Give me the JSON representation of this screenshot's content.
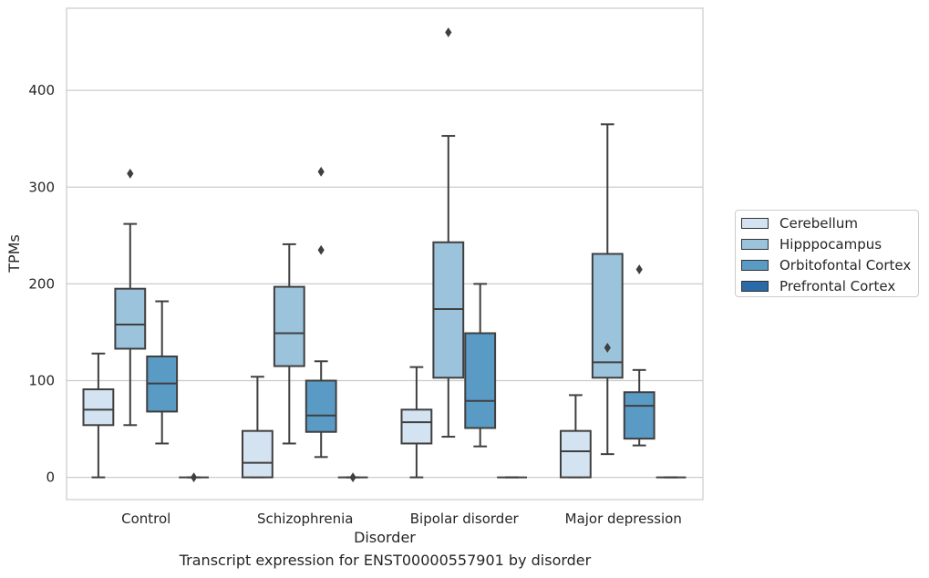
{
  "caption": "Transcript expression for ENST00000557901 by disorder",
  "chart_data": {
    "type": "box",
    "xlabel": "Disorder",
    "ylabel": "TPMs",
    "categories": [
      "Control",
      "Schizophrenia",
      "Bipolar disorder",
      "Major depression"
    ],
    "ylim": [
      -23,
      485
    ],
    "yticks": [
      0,
      100,
      200,
      300,
      400
    ],
    "grid": "horizontal",
    "legend_position": "right",
    "series": [
      {
        "name": "Cerebellum",
        "color": "#d4e3f1",
        "boxes": [
          {
            "whislo": 0,
            "q1": 54,
            "med": 70,
            "q3": 91,
            "whishi": 128,
            "fliers": []
          },
          {
            "whislo": 0,
            "q1": 0,
            "med": 15,
            "q3": 48,
            "whishi": 104,
            "fliers": []
          },
          {
            "whislo": 0,
            "q1": 35,
            "med": 57,
            "q3": 70,
            "whishi": 114,
            "fliers": []
          },
          {
            "whislo": 0,
            "q1": 0,
            "med": 27,
            "q3": 48,
            "whishi": 85,
            "fliers": []
          }
        ]
      },
      {
        "name": "Hipppocampus",
        "color": "#9cc3dc",
        "boxes": [
          {
            "whislo": 54,
            "q1": 133,
            "med": 158,
            "q3": 195,
            "whishi": 262,
            "fliers": [
              314
            ]
          },
          {
            "whislo": 35,
            "q1": 115,
            "med": 149,
            "q3": 197,
            "whishi": 241,
            "fliers": []
          },
          {
            "whislo": 42,
            "q1": 103,
            "med": 174,
            "q3": 243,
            "whishi": 353,
            "fliers": [
              460
            ]
          },
          {
            "whislo": 24,
            "q1": 103,
            "med": 119,
            "q3": 231,
            "whishi": 365,
            "fliers": [
              134
            ]
          }
        ]
      },
      {
        "name": "Orbitofontal Cortex",
        "color": "#5a9bc6",
        "boxes": [
          {
            "whislo": 35,
            "q1": 68,
            "med": 97,
            "q3": 125,
            "whishi": 182,
            "fliers": []
          },
          {
            "whislo": 21,
            "q1": 47,
            "med": 64,
            "q3": 100,
            "whishi": 120,
            "fliers": [
              235,
              316
            ]
          },
          {
            "whislo": 32,
            "q1": 51,
            "med": 79,
            "q3": 149,
            "whishi": 200,
            "fliers": []
          },
          {
            "whislo": 33,
            "q1": 40,
            "med": 74,
            "q3": 88,
            "whishi": 111,
            "fliers": [
              215
            ]
          }
        ]
      },
      {
        "name": "Prefrontal Cortex",
        "color": "#2a6aa9",
        "boxes": [
          {
            "whislo": 0,
            "q1": 0,
            "med": 0,
            "q3": 0,
            "whishi": 0,
            "fliers": [
              0
            ]
          },
          {
            "whislo": 0,
            "q1": 0,
            "med": 0,
            "q3": 0,
            "whishi": 0,
            "fliers": [
              0
            ]
          },
          {
            "whislo": 0,
            "q1": 0,
            "med": 0,
            "q3": 0,
            "whishi": 0,
            "fliers": []
          },
          {
            "whislo": 0,
            "q1": 0,
            "med": 0,
            "q3": 0,
            "whishi": 0,
            "fliers": []
          }
        ]
      }
    ]
  }
}
